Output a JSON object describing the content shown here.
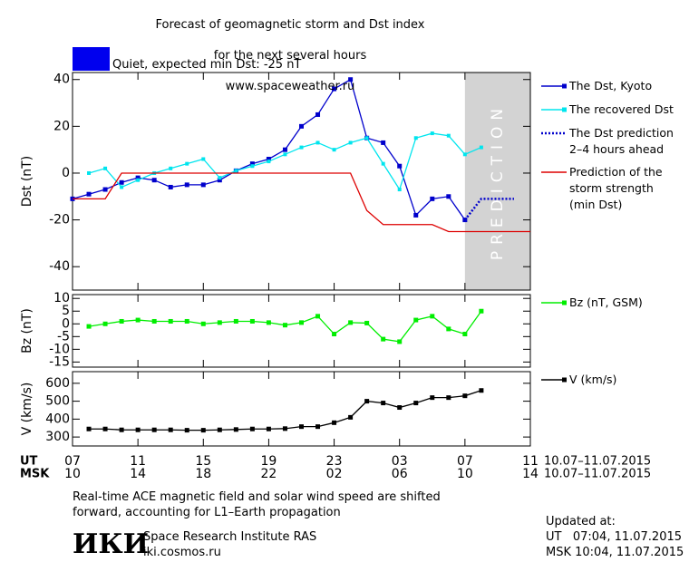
{
  "title_lines": [
    "Forecast of geomagnetic storm and Dst index",
    "for the next several hours",
    "www.spaceweather.ru"
  ],
  "status": {
    "label": "Quiet, expected min Dst: -25 nT",
    "color": "#0000ee"
  },
  "x_axis": {
    "xlim": [
      0,
      28
    ],
    "ut_label": "UT",
    "msk_label": "MSK",
    "ut_ticks": [
      {
        "value": 0,
        "label": "07"
      },
      {
        "value": 4,
        "label": "11"
      },
      {
        "value": 8,
        "label": "15"
      },
      {
        "value": 12,
        "label": "19"
      },
      {
        "value": 16,
        "label": "23"
      },
      {
        "value": 20,
        "label": "03"
      },
      {
        "value": 24,
        "label": "07"
      },
      {
        "value": 28,
        "label": "11"
      }
    ],
    "msk_ticks": [
      {
        "value": 0,
        "label": "10"
      },
      {
        "value": 4,
        "label": "14"
      },
      {
        "value": 8,
        "label": "18"
      },
      {
        "value": 12,
        "label": "22"
      },
      {
        "value": 16,
        "label": "02"
      },
      {
        "value": 20,
        "label": "06"
      },
      {
        "value": 24,
        "label": "10"
      },
      {
        "value": 28,
        "label": "14"
      }
    ],
    "ut_range": "10.07–11.07.2015",
    "msk_range": "10.07–11.07.2015"
  },
  "chart_data": [
    {
      "type": "line",
      "ylabel": "Dst (nT)",
      "ylim": [
        -50,
        43
      ],
      "yticks": [
        -40,
        -20,
        0,
        20,
        40
      ],
      "prediction_region": {
        "label": "PREDICTION",
        "x": [
          24,
          28
        ],
        "color": "#d3d3d3"
      },
      "series": [
        {
          "name": "The Dst, Kyoto",
          "color": "#0000cc",
          "marker": "square",
          "dash": false,
          "x": [
            0,
            1,
            2,
            3,
            4,
            5,
            6,
            7,
            8,
            9,
            10,
            11,
            12,
            13,
            14,
            15,
            16,
            17,
            18,
            19,
            20,
            21,
            22,
            23,
            24
          ],
          "values": [
            -11,
            -9,
            -7,
            -4,
            -2,
            -3,
            -6,
            -5,
            -5,
            -3,
            1,
            4,
            6,
            10,
            20,
            25,
            36,
            40,
            15,
            13,
            3,
            -18,
            -11,
            -10,
            -20
          ]
        },
        {
          "name": "The recovered Dst",
          "color": "#00e5ee",
          "marker": "small",
          "dash": false,
          "x": [
            1,
            2,
            3,
            4,
            5,
            6,
            7,
            8,
            9,
            10,
            11,
            12,
            13,
            14,
            15,
            16,
            17,
            18,
            19,
            20,
            21,
            22,
            23,
            24,
            25
          ],
          "values": [
            0,
            2,
            -6,
            -3,
            0,
            2,
            4,
            6,
            -2,
            1,
            3,
            5,
            8,
            11,
            13,
            10,
            13,
            15,
            4,
            -7,
            15,
            17,
            16,
            8,
            11
          ]
        },
        {
          "name": "The Dst prediction\n2–4 hours ahead",
          "color": "#0000cc",
          "marker": "none",
          "dash": true,
          "x": [
            24,
            25,
            26,
            27
          ],
          "values": [
            -20,
            -11,
            -11,
            -11
          ]
        },
        {
          "name": "Prediction of the\nstorm strength\n(min Dst)",
          "color": "#dd0000",
          "marker": "none",
          "dash": false,
          "x": [
            0,
            2,
            3,
            17,
            18,
            19,
            22,
            23,
            28
          ],
          "values": [
            -11,
            -11,
            0,
            0,
            -16,
            -22,
            -22,
            -25,
            -25
          ]
        }
      ]
    },
    {
      "type": "line",
      "ylabel": "Bz (nT)",
      "ylim": [
        -17,
        11.5
      ],
      "yticks": [
        -15,
        -10,
        -5,
        0,
        5,
        10
      ],
      "series": [
        {
          "name": "Bz (nT, GSM)",
          "color": "#00ee00",
          "marker": "square",
          "dash": false,
          "x": [
            1,
            2,
            3,
            4,
            5,
            6,
            7,
            8,
            9,
            10,
            11,
            12,
            13,
            14,
            15,
            16,
            17,
            18,
            19,
            20,
            21,
            22,
            23,
            24,
            25
          ],
          "values": [
            -1,
            0,
            1,
            1.5,
            1,
            1,
            1,
            0,
            0.5,
            1,
            1,
            0.5,
            -0.5,
            0.5,
            3,
            -4,
            0.5,
            0.3,
            -6,
            -7,
            1.5,
            3,
            -2,
            -4,
            5
          ]
        }
      ]
    },
    {
      "type": "line",
      "ylabel": "V (km/s)",
      "ylim": [
        250,
        665
      ],
      "yticks": [
        300,
        400,
        500,
        600
      ],
      "series": [
        {
          "name": "V (km/s)",
          "color": "#000000",
          "marker": "square",
          "dash": false,
          "x": [
            1,
            2,
            3,
            4,
            5,
            6,
            7,
            8,
            9,
            10,
            11,
            12,
            13,
            14,
            15,
            16,
            17,
            18,
            19,
            20,
            21,
            22,
            23,
            24,
            25
          ],
          "values": [
            345,
            345,
            340,
            340,
            340,
            340,
            338,
            338,
            340,
            342,
            345,
            345,
            347,
            358,
            358,
            380,
            410,
            500,
            490,
            465,
            490,
            520,
            520,
            530,
            560
          ]
        }
      ]
    }
  ],
  "footer": {
    "note": "Real-time ACE magnetic field and solar wind speed are shifted\nforward, accounting for L1–Earth propagation",
    "logo": "ИКИ",
    "institute": "Space Research Institute RAS",
    "site": "iki.cosmos.ru",
    "updated_title": "Updated at:",
    "updated_ut": "UT   07:04, 11.07.2015",
    "updated_msk": "MSK 10:04, 11.07.2015"
  }
}
